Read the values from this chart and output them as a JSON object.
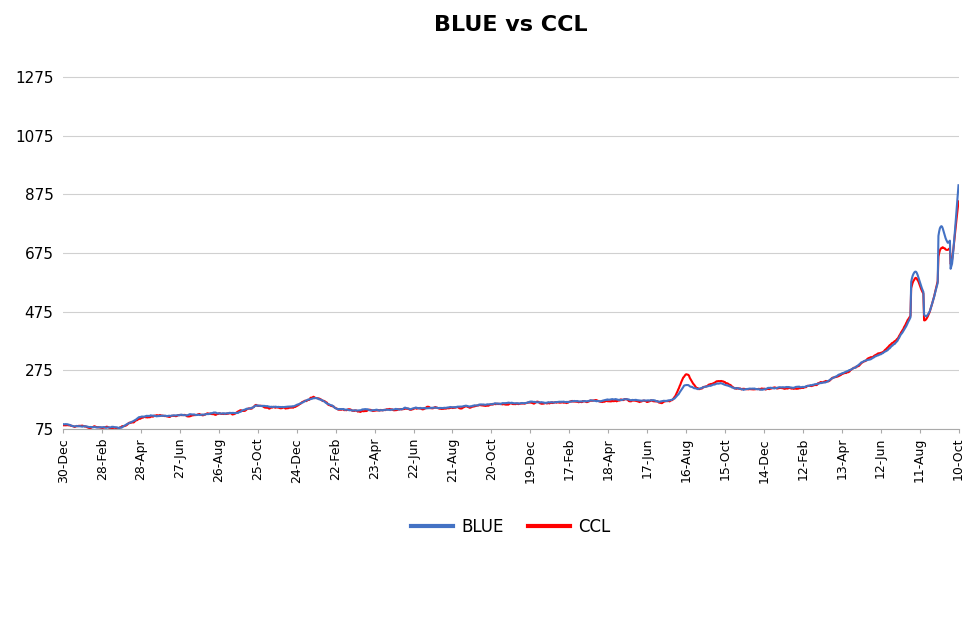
{
  "title": "BLUE vs CCL",
  "title_fontsize": 16,
  "title_fontweight": "bold",
  "background_color": "#ffffff",
  "blue_color": "#4472C4",
  "ccl_color": "#FF0000",
  "ylim": [
    75,
    1375
  ],
  "yticks": [
    75,
    275,
    475,
    675,
    875,
    1075,
    1275
  ],
  "x_labels": [
    "30-Dec",
    "28-Feb",
    "28-Apr",
    "27-Jun",
    "26-Aug",
    "25-Oct",
    "24-Dec",
    "22-Feb",
    "23-Apr",
    "22-Jun",
    "21-Aug",
    "20-Oct",
    "19-Dec",
    "17-Feb",
    "18-Apr",
    "17-Jun",
    "16-Aug",
    "15-Oct",
    "14-Dec",
    "12-Feb",
    "13-Apr",
    "12-Jun",
    "11-Aug",
    "10-Oct"
  ],
  "legend_labels": [
    "BLUE",
    "CCL"
  ],
  "line_width": 1.5,
  "blue_keypoints_t": [
    0.0,
    0.02,
    0.045,
    0.065,
    0.085,
    0.1,
    0.12,
    0.14,
    0.16,
    0.175,
    0.195,
    0.215,
    0.235,
    0.26,
    0.28,
    0.295,
    0.315,
    0.33,
    0.35,
    0.37,
    0.39,
    0.415,
    0.44,
    0.46,
    0.48,
    0.5,
    0.515,
    0.53,
    0.545,
    0.56,
    0.58,
    0.6,
    0.615,
    0.63,
    0.645,
    0.66,
    0.675,
    0.69,
    0.705,
    0.72,
    0.735,
    0.75,
    0.76,
    0.775,
    0.79,
    0.8,
    0.815,
    0.825,
    0.835,
    0.845,
    0.855,
    0.86,
    0.868,
    0.878,
    0.885,
    0.892,
    0.9,
    0.907,
    0.914,
    0.92,
    0.927,
    0.932,
    0.937,
    0.942,
    0.947,
    0.953,
    0.958,
    0.963,
    0.968,
    0.973,
    0.978,
    0.983,
    0.988,
    0.993,
    1.0
  ],
  "blue_keypoints_v": [
    90,
    85,
    80,
    80,
    115,
    120,
    120,
    122,
    125,
    128,
    130,
    155,
    150,
    145,
    140,
    142,
    140,
    138,
    140,
    142,
    145,
    148,
    150,
    155,
    160,
    162,
    165,
    167,
    165,
    168,
    170,
    172,
    174,
    175,
    172,
    170,
    170,
    175,
    200,
    220,
    230,
    215,
    210,
    210,
    215,
    215,
    215,
    218,
    222,
    230,
    240,
    250,
    260,
    275,
    285,
    300,
    310,
    320,
    330,
    345,
    360,
    375,
    400,
    430,
    460,
    490,
    500,
    510,
    530,
    560,
    600,
    640,
    680,
    730,
    940
  ],
  "ccl_keypoints_t": [
    0.0,
    0.02,
    0.045,
    0.065,
    0.085,
    0.1,
    0.12,
    0.14,
    0.16,
    0.175,
    0.195,
    0.215,
    0.235,
    0.26,
    0.28,
    0.295,
    0.315,
    0.33,
    0.35,
    0.37,
    0.39,
    0.415,
    0.44,
    0.46,
    0.48,
    0.5,
    0.515,
    0.53,
    0.545,
    0.56,
    0.58,
    0.6,
    0.615,
    0.63,
    0.645,
    0.66,
    0.675,
    0.69,
    0.705,
    0.72,
    0.735,
    0.75,
    0.76,
    0.775,
    0.79,
    0.8,
    0.815,
    0.825,
    0.835,
    0.845,
    0.855,
    0.86,
    0.868,
    0.878,
    0.885,
    0.892,
    0.9,
    0.907,
    0.914,
    0.92,
    0.927,
    0.932,
    0.937,
    0.942,
    0.947,
    0.953,
    0.958,
    0.963,
    0.968,
    0.973,
    0.978,
    0.983,
    0.988,
    0.993,
    1.0
  ],
  "ccl_keypoints_v": [
    88,
    83,
    79,
    79,
    113,
    118,
    118,
    120,
    123,
    126,
    128,
    153,
    148,
    143,
    138,
    140,
    138,
    135,
    138,
    140,
    143,
    146,
    148,
    153,
    158,
    160,
    162,
    165,
    163,
    165,
    168,
    170,
    172,
    173,
    170,
    168,
    168,
    173,
    198,
    225,
    240,
    215,
    210,
    210,
    213,
    215,
    213,
    216,
    220,
    228,
    238,
    248,
    258,
    272,
    285,
    302,
    315,
    328,
    338,
    352,
    368,
    382,
    408,
    438,
    465,
    495,
    505,
    518,
    538,
    568,
    608,
    640,
    670,
    710,
    870
  ]
}
